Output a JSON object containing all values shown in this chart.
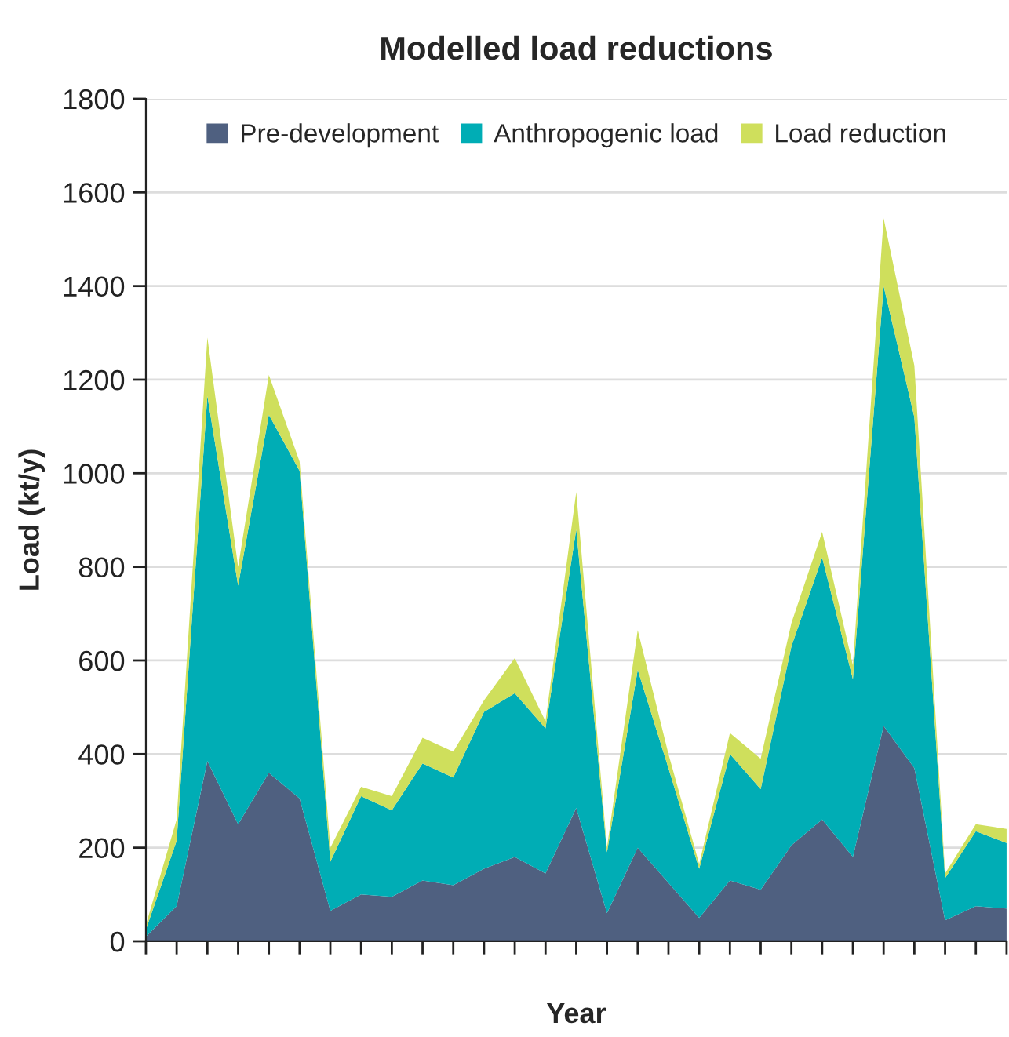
{
  "chart_data": {
    "type": "area",
    "stacked": true,
    "title": "Modelled load reductions",
    "xlabel": "Year",
    "ylabel": "Load (kt/y)",
    "categories": [
      null,
      null,
      null,
      null,
      null,
      null,
      null,
      null,
      null,
      null,
      null,
      null,
      null,
      null,
      null,
      null,
      null,
      null,
      null,
      null,
      null,
      null,
      null,
      null,
      null,
      null,
      null,
      null,
      null
    ],
    "series": [
      {
        "name": "Pre-development",
        "color": "#4f6080",
        "values": [
          10,
          75,
          385,
          250,
          360,
          305,
          65,
          100,
          95,
          130,
          120,
          155,
          180,
          145,
          285,
          60,
          200,
          125,
          50,
          130,
          110,
          205,
          260,
          180,
          460,
          370,
          45,
          75,
          70
        ]
      },
      {
        "name": "Anthropogenic load",
        "color": "#00adb5",
        "values": [
          15,
          140,
          780,
          510,
          765,
          700,
          105,
          210,
          185,
          250,
          230,
          335,
          350,
          310,
          595,
          130,
          380,
          245,
          105,
          270,
          215,
          425,
          560,
          380,
          940,
          750,
          90,
          160,
          140
        ]
      },
      {
        "name": "Load reduction",
        "color": "#cfdf5c",
        "values": [
          10,
          45,
          125,
          40,
          85,
          20,
          30,
          20,
          30,
          55,
          55,
          25,
          75,
          15,
          80,
          10,
          85,
          30,
          10,
          45,
          65,
          50,
          55,
          30,
          145,
          110,
          10,
          15,
          30
        ]
      }
    ],
    "ylim": [
      0,
      1800
    ],
    "yticks": [
      0,
      200,
      400,
      600,
      800,
      1000,
      1200,
      1400,
      1600,
      1800
    ],
    "grid": "y",
    "legend": "top",
    "tick_labels": "y"
  }
}
